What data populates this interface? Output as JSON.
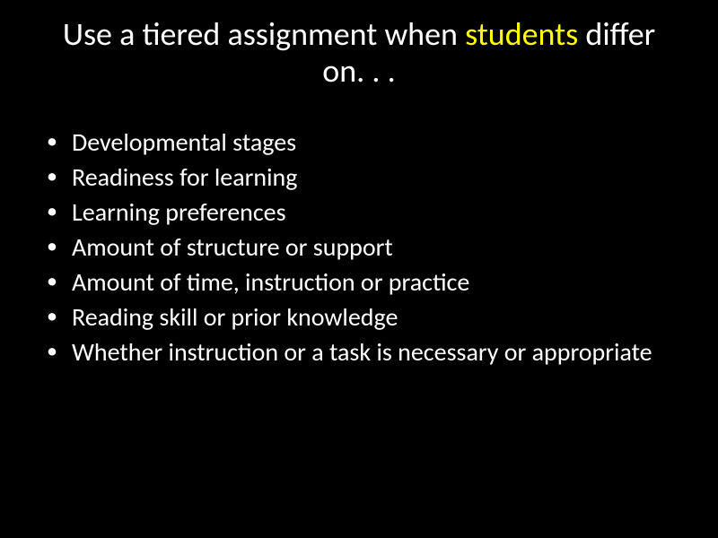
{
  "slide": {
    "background_color": "#000000",
    "text_color": "#ffffff",
    "highlight_color": "#ffff00",
    "title": {
      "pre": "Use a tiered assignment when ",
      "highlight": "students",
      "post": " differ on. . .",
      "fontsize": 36,
      "weight": 400
    },
    "bullets": {
      "fontsize": 28,
      "weight": 400,
      "items": [
        "Developmental stages",
        "Readiness for learning",
        "Learning preferences",
        "Amount of structure or support",
        "Amount of time, instruction or practice",
        "Reading skill or prior knowledge",
        "Whether instruction or a task is necessary or appropriate"
      ]
    }
  }
}
